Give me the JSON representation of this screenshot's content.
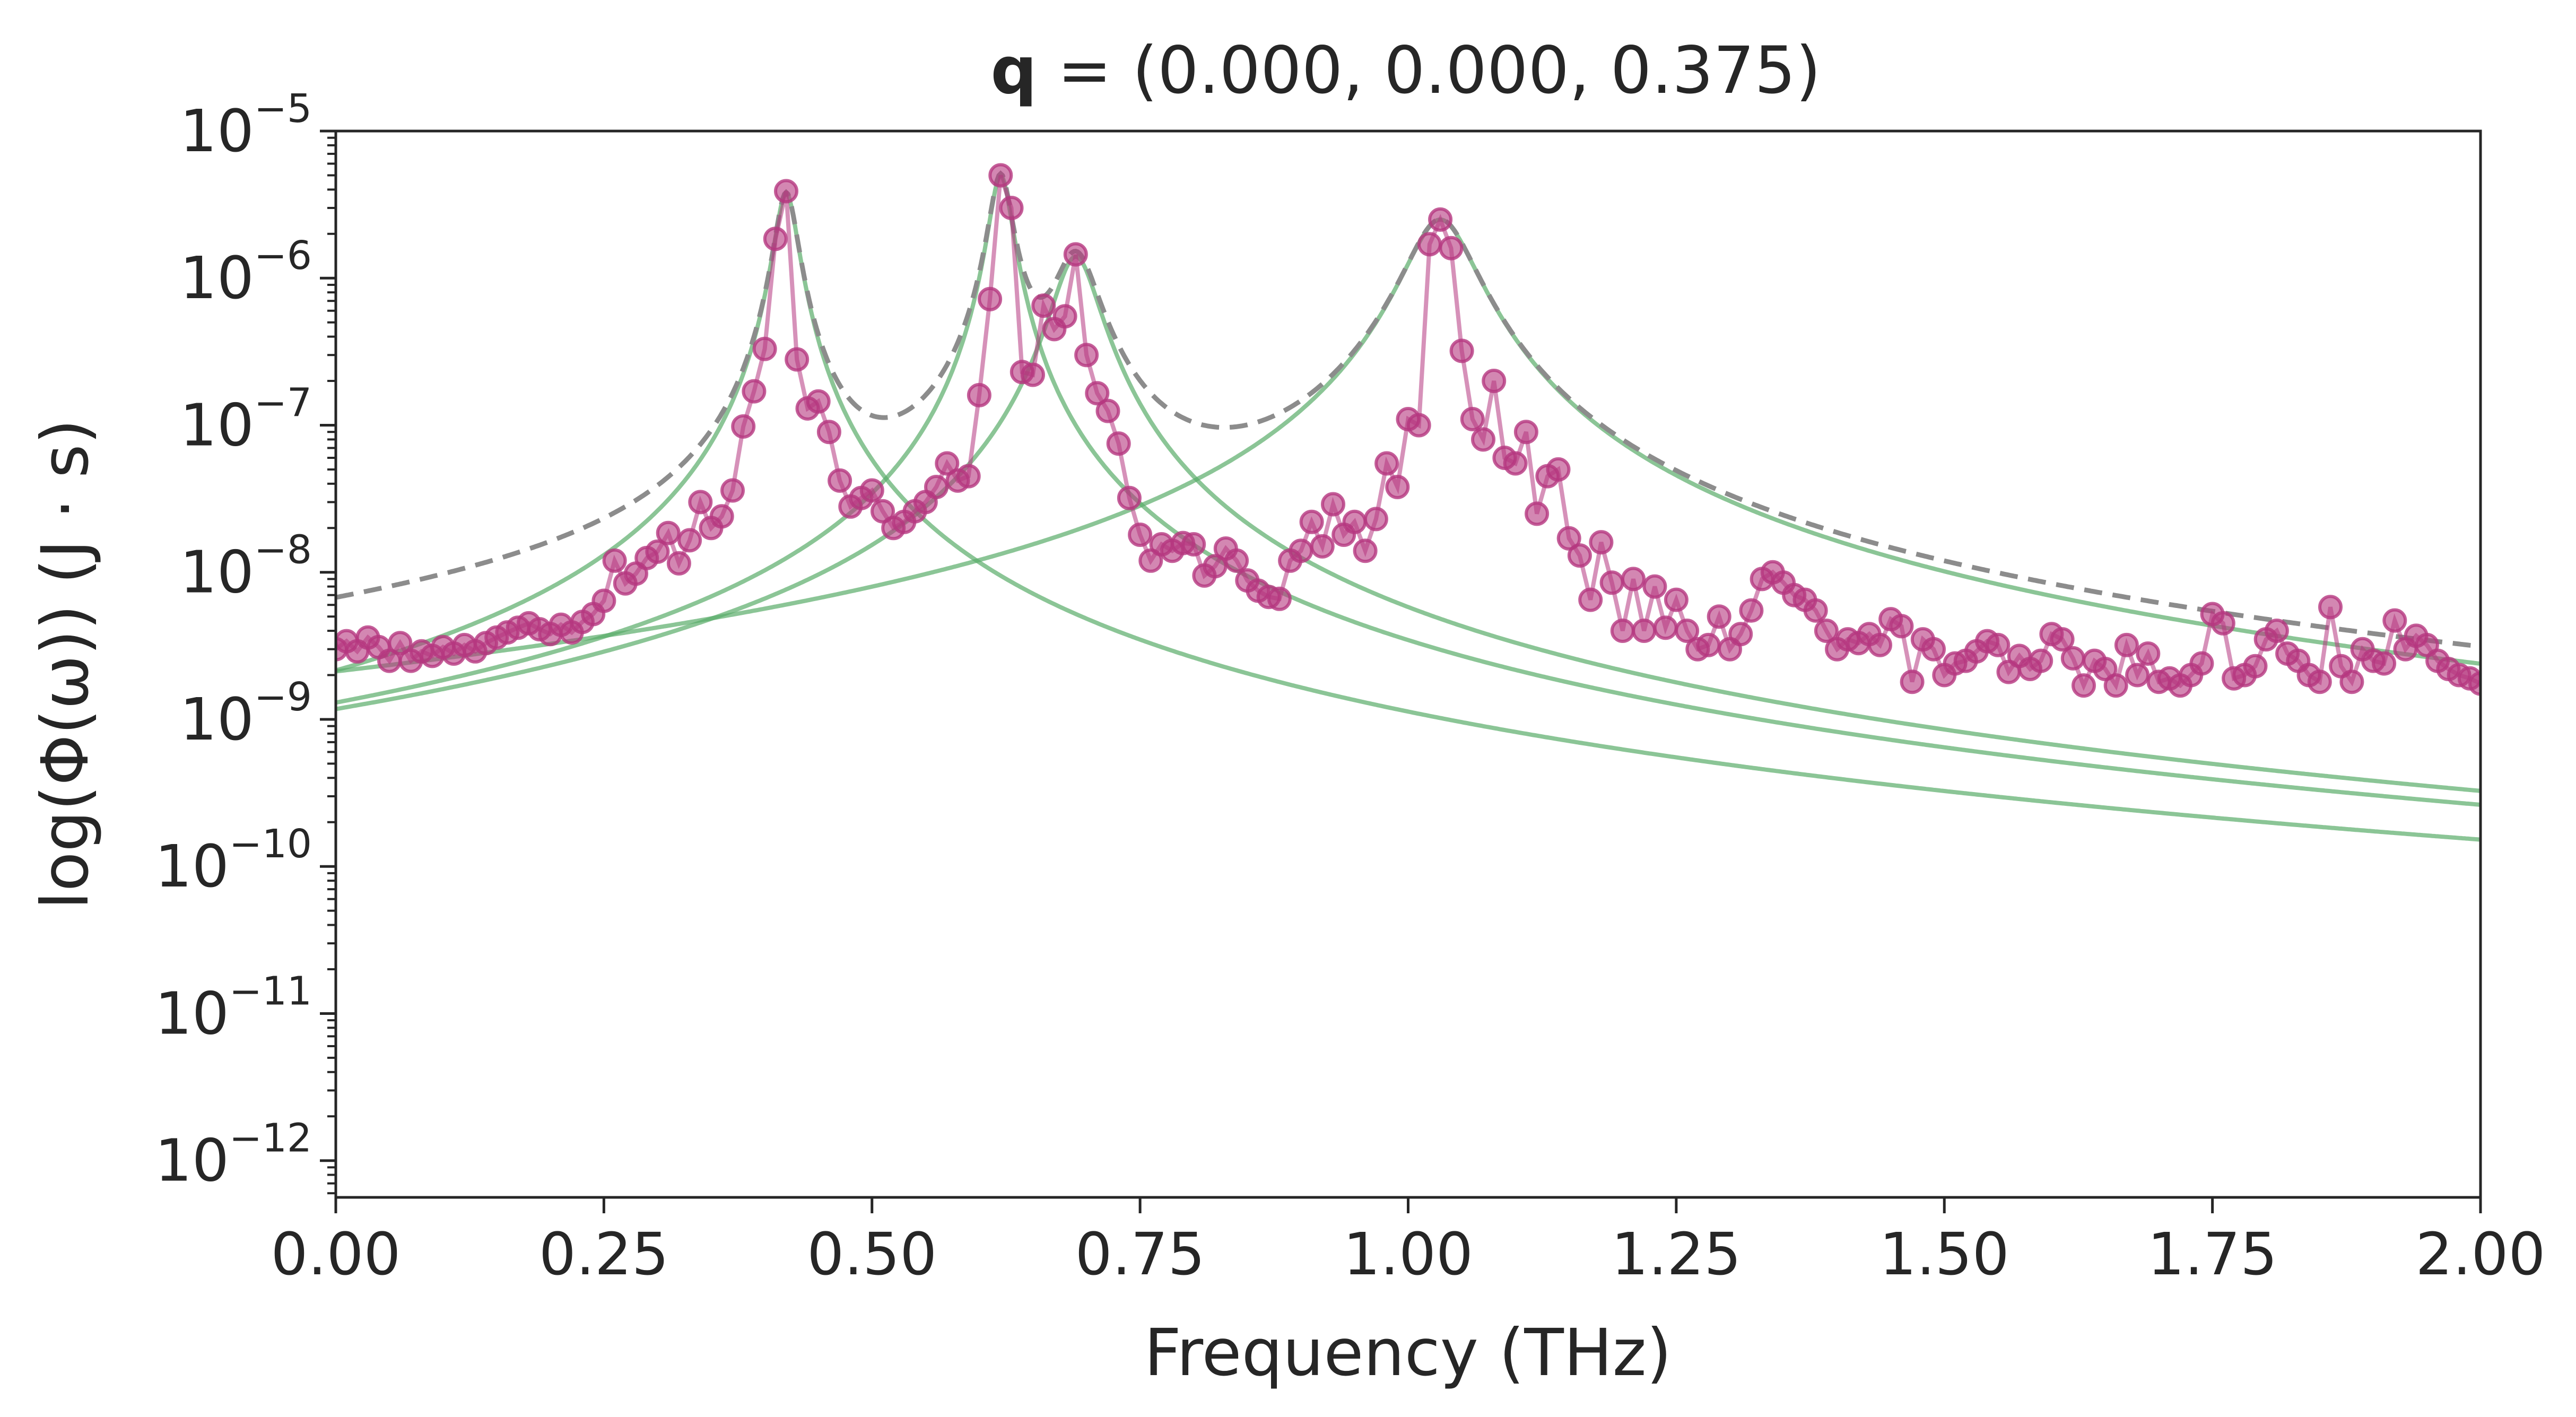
{
  "chart_data": {
    "type": "line",
    "title_bold": "q",
    "title_rest": " = (0.000, 0.000, 0.375)",
    "xlabel": "Frequency (THz)",
    "ylabel": "log(Φ(ω)) (J · s)",
    "xlim": [
      0,
      2
    ],
    "ylim_log10": [
      -12.25,
      -5
    ],
    "yscale": "log",
    "grid": false,
    "xticks": [
      "0.00",
      "0.25",
      "0.50",
      "0.75",
      "1.00",
      "1.25",
      "1.50",
      "1.75",
      "2.00"
    ],
    "yticks": [
      {
        "base": "10",
        "exp": "−5",
        "log": -5
      },
      {
        "base": "10",
        "exp": "−6",
        "log": -6
      },
      {
        "base": "10",
        "exp": "−7",
        "log": -7
      },
      {
        "base": "10",
        "exp": "−8",
        "log": -8
      },
      {
        "base": "10",
        "exp": "−9",
        "log": -9
      },
      {
        "base": "10",
        "exp": "−10",
        "log": -10
      },
      {
        "base": "10",
        "exp": "−11",
        "log": -11
      },
      {
        "base": "10",
        "exp": "−12",
        "log": -12
      }
    ],
    "colors": {
      "data": "#b5377f",
      "fit_total": "#8c8c8c",
      "fit_mode": "#5aad6a"
    },
    "modes": [
      {
        "center": 0.42,
        "peak": 3.8e-06,
        "gamma": 0.01
      },
      {
        "center": 0.62,
        "peak": 5e-06,
        "gamma": 0.01
      },
      {
        "center": 0.69,
        "peak": 1.4e-06,
        "gamma": 0.02
      },
      {
        "center": 1.03,
        "peak": 2.5e-06,
        "gamma": 0.03
      }
    ],
    "series": [
      {
        "x": [
          0.0,
          0.01,
          0.02,
          0.03,
          0.04,
          0.05,
          0.06,
          0.07,
          0.08,
          0.09,
          0.1,
          0.11,
          0.12,
          0.13,
          0.14,
          0.15,
          0.16,
          0.17,
          0.18,
          0.19,
          0.2,
          0.21,
          0.22,
          0.23,
          0.24,
          0.25,
          0.26,
          0.27,
          0.28,
          0.29,
          0.3,
          0.31,
          0.32,
          0.33,
          0.34,
          0.35,
          0.36,
          0.37,
          0.38,
          0.39,
          0.4,
          0.41,
          0.42,
          0.43,
          0.44,
          0.45,
          0.46,
          0.47,
          0.48,
          0.49,
          0.5,
          0.51,
          0.52,
          0.53,
          0.54,
          0.55,
          0.56,
          0.57,
          0.58,
          0.59,
          0.6,
          0.61,
          0.62,
          0.63,
          0.64,
          0.65,
          0.66,
          0.67,
          0.68,
          0.69,
          0.7,
          0.71,
          0.72,
          0.73,
          0.74,
          0.75,
          0.76,
          0.77,
          0.78,
          0.79,
          0.8,
          0.81,
          0.82,
          0.83,
          0.84,
          0.85,
          0.86,
          0.87,
          0.88,
          0.89,
          0.9,
          0.91,
          0.92,
          0.93,
          0.94,
          0.95,
          0.96,
          0.97,
          0.98,
          0.99,
          1.0,
          1.01,
          1.02,
          1.03,
          1.04,
          1.05,
          1.06,
          1.07,
          1.08,
          1.09,
          1.1,
          1.11,
          1.12,
          1.13,
          1.14,
          1.15,
          1.16,
          1.17,
          1.18,
          1.19,
          1.2,
          1.21,
          1.22,
          1.23,
          1.24,
          1.25,
          1.26,
          1.27,
          1.28,
          1.29,
          1.3,
          1.31,
          1.32,
          1.33,
          1.34,
          1.35,
          1.36,
          1.37,
          1.38,
          1.39,
          1.4,
          1.41,
          1.42,
          1.43,
          1.44,
          1.45,
          1.46,
          1.47,
          1.48,
          1.49,
          1.5,
          1.51,
          1.52,
          1.53,
          1.54,
          1.55,
          1.56,
          1.57,
          1.58,
          1.59,
          1.6,
          1.61,
          1.62,
          1.63,
          1.64,
          1.65,
          1.66,
          1.67,
          1.68,
          1.69,
          1.7,
          1.71,
          1.72,
          1.73,
          1.74,
          1.75,
          1.76,
          1.77,
          1.78,
          1.79,
          1.8,
          1.81,
          1.82,
          1.83,
          1.84,
          1.85,
          1.86,
          1.87,
          1.88,
          1.89,
          1.9,
          1.91,
          1.92,
          1.93,
          1.94,
          1.95,
          1.96,
          1.97,
          1.98,
          1.99,
          2.0
        ],
        "y": [
          3e-09,
          3.4e-09,
          2.9e-09,
          3.6e-09,
          3.1e-09,
          2.5e-09,
          3.3e-09,
          2.5e-09,
          2.9e-09,
          2.7e-09,
          3.1e-09,
          2.8e-09,
          3.2e-09,
          2.9e-09,
          3.3e-09,
          3.6e-09,
          3.9e-09,
          4.2e-09,
          4.5e-09,
          4.1e-09,
          3.8e-09,
          4.4e-09,
          3.9e-09,
          4.6e-09,
          5.2e-09,
          6.4e-09,
          1.2e-08,
          8.4e-09,
          9.8e-09,
          1.25e-08,
          1.38e-08,
          1.85e-08,
          1.15e-08,
          1.65e-08,
          3e-08,
          2e-08,
          2.4e-08,
          3.6e-08,
          9.8e-08,
          1.7e-07,
          3.3e-07,
          1.85e-06,
          3.9e-06,
          2.8e-07,
          1.3e-07,
          1.45e-07,
          9e-08,
          4.2e-08,
          2.8e-08,
          3.2e-08,
          3.6e-08,
          2.6e-08,
          2e-08,
          2.2e-08,
          2.6e-08,
          3e-08,
          3.8e-08,
          5.5e-08,
          4.2e-08,
          4.5e-08,
          1.6e-07,
          7.2e-07,
          5e-06,
          3e-06,
          2.3e-07,
          2.2e-07,
          6.5e-07,
          4.5e-07,
          5.5e-07,
          1.45e-06,
          3e-07,
          1.65e-07,
          1.25e-07,
          7.5e-08,
          3.2e-08,
          1.8e-08,
          1.2e-08,
          1.55e-08,
          1.4e-08,
          1.58e-08,
          1.55e-08,
          9.5e-09,
          1.1e-08,
          1.45e-08,
          1.2e-08,
          8.8e-09,
          7.5e-09,
          6.8e-09,
          6.6e-09,
          1.2e-08,
          1.4e-08,
          2.2e-08,
          1.5e-08,
          2.9e-08,
          1.8e-08,
          2.2e-08,
          1.4e-08,
          2.3e-08,
          5.5e-08,
          3.8e-08,
          1.1e-07,
          1e-07,
          1.7e-06,
          2.5e-06,
          1.6e-06,
          3.2e-07,
          1.1e-07,
          8e-08,
          2e-07,
          6e-08,
          5.5e-08,
          9e-08,
          2.5e-08,
          4.5e-08,
          5e-08,
          1.7e-08,
          1.3e-08,
          6.5e-09,
          1.6e-08,
          8.5e-09,
          4e-09,
          9e-09,
          4e-09,
          8e-09,
          4.2e-09,
          6.5e-09,
          4e-09,
          3e-09,
          3.2e-09,
          5e-09,
          3e-09,
          3.8e-09,
          5.5e-09,
          9e-09,
          1e-08,
          8.5e-09,
          7e-09,
          6.5e-09,
          5.5e-09,
          4e-09,
          3e-09,
          3.5e-09,
          3.3e-09,
          3.8e-09,
          3.2e-09,
          4.8e-09,
          4.3e-09,
          1.8e-09,
          3.5e-09,
          3e-09,
          2e-09,
          2.4e-09,
          2.5e-09,
          2.9e-09,
          3.4e-09,
          3.2e-09,
          2.1e-09,
          2.7e-09,
          2.2e-09,
          2.5e-09,
          3.8e-09,
          3.5e-09,
          2.6e-09,
          1.7e-09,
          2.5e-09,
          2.2e-09,
          1.7e-09,
          3.2e-09,
          2e-09,
          2.8e-09,
          1.8e-09,
          1.9e-09,
          1.7e-09,
          2e-09,
          2.4e-09,
          5.2e-09,
          4.5e-09,
          1.9e-09,
          2e-09,
          2.3e-09,
          3.5e-09,
          4e-09,
          2.8e-09,
          2.5e-09,
          2e-09,
          1.8e-09,
          5.8e-09,
          2.3e-09,
          1.8e-09,
          3e-09,
          2.5e-09,
          2.4e-09,
          4.7e-09,
          3e-09,
          3.7e-09,
          3.2e-09,
          2.5e-09,
          2.2e-09,
          2e-09,
          1.9e-09,
          1.75e-09
        ]
      }
    ]
  }
}
